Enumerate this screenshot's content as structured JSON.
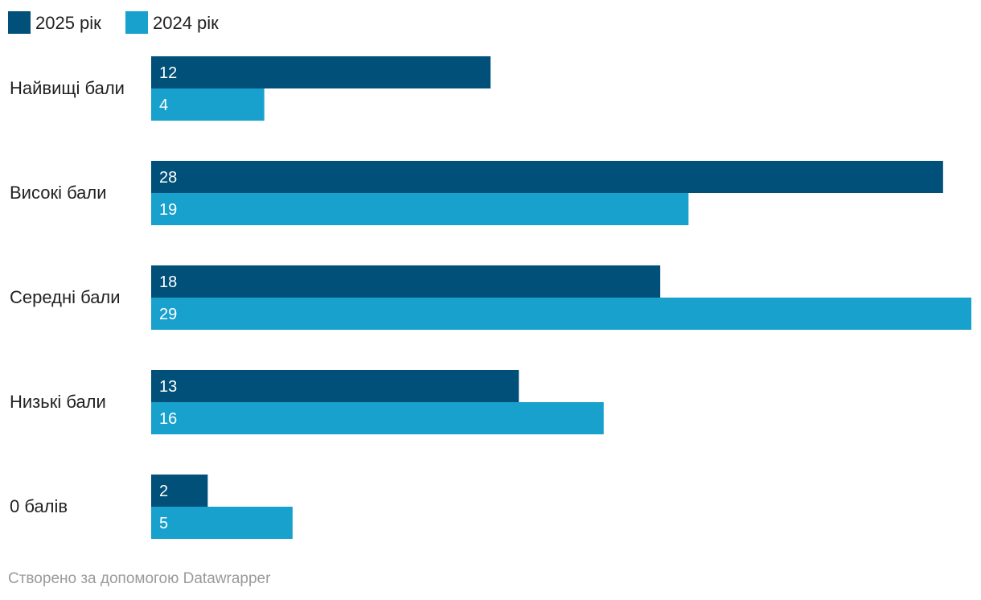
{
  "chart_data": {
    "type": "bar",
    "orientation": "horizontal",
    "categories": [
      "Найвищі бали",
      "Високі бали",
      "Середні бали",
      "Низькі бали",
      "0 балів"
    ],
    "series": [
      {
        "name": "2025 рік",
        "color": "#00507a",
        "values": [
          12,
          28,
          18,
          13,
          2
        ]
      },
      {
        "name": "2024 рік",
        "color": "#18a1cd",
        "values": [
          4,
          19,
          29,
          16,
          5
        ]
      }
    ],
    "xlim": [
      0,
      29
    ],
    "grid": false,
    "legend": "top-left",
    "title": "",
    "xlabel": "",
    "ylabel": ""
  },
  "footer": {
    "credit": "Створено за допомогою Datawrapper"
  }
}
